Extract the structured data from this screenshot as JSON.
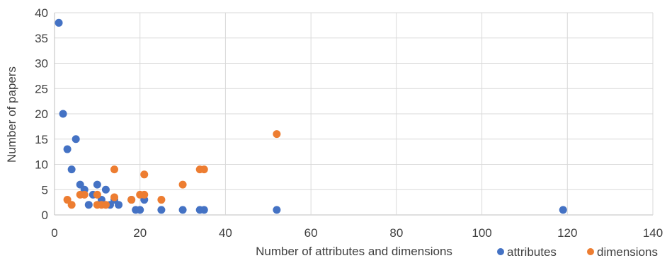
{
  "chart_data": {
    "type": "scatter",
    "xlabel": "Number of attributes and dimensions",
    "ylabel": "Number of papers",
    "xlim": [
      0,
      140
    ],
    "ylim": [
      0,
      40
    ],
    "x_ticks": [
      "0",
      "20",
      "40",
      "60",
      "80",
      "100",
      "120",
      "140"
    ],
    "y_ticks": [
      "0",
      "5",
      "10",
      "15",
      "20",
      "25",
      "30",
      "35",
      "40"
    ],
    "grid": "vertical and horizontal",
    "legend_placement": "bottom-right",
    "series": [
      {
        "name": "attributes",
        "color": "#4472C4",
        "points": [
          [
            1,
            38
          ],
          [
            2,
            20
          ],
          [
            3,
            13
          ],
          [
            4,
            9
          ],
          [
            5,
            15
          ],
          [
            6,
            6
          ],
          [
            7,
            5
          ],
          [
            8,
            2
          ],
          [
            9,
            4
          ],
          [
            10,
            6
          ],
          [
            11,
            3
          ],
          [
            12,
            5
          ],
          [
            13,
            2
          ],
          [
            14,
            3
          ],
          [
            15,
            2
          ],
          [
            18,
            3
          ],
          [
            19,
            1
          ],
          [
            20,
            1
          ],
          [
            21,
            3
          ],
          [
            25,
            1
          ],
          [
            30,
            1
          ],
          [
            34,
            1
          ],
          [
            35,
            1
          ],
          [
            52,
            1
          ],
          [
            119,
            1
          ]
        ]
      },
      {
        "name": "dimensions",
        "color": "#ED7D31",
        "points": [
          [
            3,
            3
          ],
          [
            4,
            2
          ],
          [
            6,
            4
          ],
          [
            7,
            4
          ],
          [
            10,
            2
          ],
          [
            10,
            4
          ],
          [
            11,
            2
          ],
          [
            12,
            2
          ],
          [
            14,
            9
          ],
          [
            14,
            3.5
          ],
          [
            18,
            3
          ],
          [
            20,
            4
          ],
          [
            21,
            4
          ],
          [
            21,
            8
          ],
          [
            25,
            3
          ],
          [
            30,
            6
          ],
          [
            34,
            9
          ],
          [
            35,
            9
          ],
          [
            52,
            16
          ]
        ]
      }
    ]
  }
}
